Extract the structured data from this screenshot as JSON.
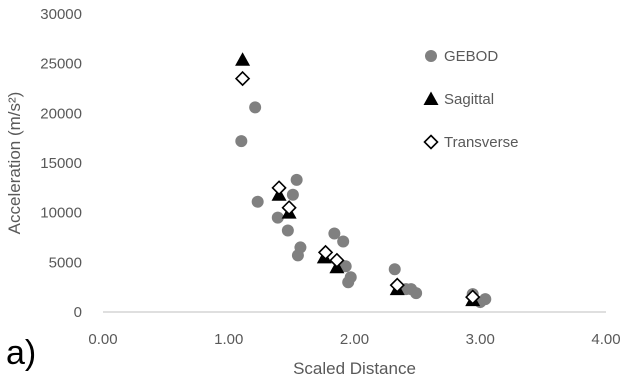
{
  "panel_label": "a)",
  "chart_data": {
    "type": "scatter",
    "xlabel": "Scaled Distance",
    "ylabel": "Acceleration (m/s²)",
    "xlim": [
      0,
      4
    ],
    "ylim": [
      0,
      30000
    ],
    "x_ticks": [
      0,
      1,
      2,
      3,
      4
    ],
    "x_tick_labels": [
      "0.00",
      "1.00",
      "2.00",
      "3.00",
      "4.00"
    ],
    "y_ticks": [
      0,
      5000,
      10000,
      15000,
      20000,
      25000,
      30000
    ],
    "y_tick_labels": [
      "0",
      "5000",
      "10000",
      "15000",
      "20000",
      "25000",
      "30000"
    ],
    "grid": false,
    "legend_position": "top-right",
    "series": [
      {
        "name": "GEBOD",
        "marker": "circle",
        "color": "#808080",
        "points": [
          [
            1.1,
            17200
          ],
          [
            1.21,
            20600
          ],
          [
            1.23,
            11100
          ],
          [
            1.39,
            9500
          ],
          [
            1.47,
            8200
          ],
          [
            1.51,
            11800
          ],
          [
            1.54,
            13300
          ],
          [
            1.55,
            5700
          ],
          [
            1.57,
            6500
          ],
          [
            1.84,
            7900
          ],
          [
            1.91,
            7100
          ],
          [
            1.93,
            4600
          ],
          [
            1.95,
            3000
          ],
          [
            1.97,
            3500
          ],
          [
            2.32,
            4300
          ],
          [
            2.41,
            2300
          ],
          [
            2.45,
            2300
          ],
          [
            2.49,
            1900
          ],
          [
            2.94,
            1800
          ],
          [
            3.0,
            1000
          ],
          [
            3.04,
            1300
          ]
        ]
      },
      {
        "name": "Sagittal",
        "marker": "triangle",
        "color": "#000000",
        "points": [
          [
            1.11,
            25400
          ],
          [
            1.4,
            11800
          ],
          [
            1.48,
            10000
          ],
          [
            1.76,
            5500
          ],
          [
            1.86,
            4500
          ],
          [
            2.34,
            2300
          ],
          [
            2.94,
            1200
          ]
        ]
      },
      {
        "name": "Transverse",
        "marker": "diamond",
        "color": "#000000",
        "points": [
          [
            1.11,
            23500
          ],
          [
            1.4,
            12500
          ],
          [
            1.48,
            10500
          ],
          [
            1.77,
            6000
          ],
          [
            1.86,
            5200
          ],
          [
            2.34,
            2700
          ],
          [
            2.94,
            1500
          ]
        ]
      }
    ]
  }
}
